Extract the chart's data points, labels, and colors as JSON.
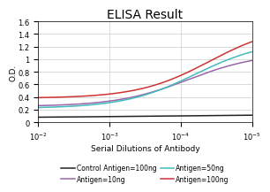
{
  "title": "ELISA Result",
  "ylabel": "O.D.",
  "xlabel": "Serial Dilutions of Antibody",
  "ylim": [
    0,
    1.6
  ],
  "yticks": [
    0,
    0.2,
    0.4,
    0.6,
    0.8,
    1.0,
    1.2,
    1.4,
    1.6
  ],
  "ytick_labels": [
    "0",
    "0.2",
    "0.4",
    "0.6",
    "0.8",
    "1",
    "1.2",
    "1.4",
    "1.6"
  ],
  "xtick_positions": [
    -2,
    -3,
    -4,
    -5
  ],
  "xtick_labels": [
    "10^-2",
    "10^-3",
    "10^-4",
    "10^-5"
  ],
  "curve_params": [
    {
      "label": "Control Antigen=100ng",
      "color": "#222222",
      "y_high": 0.12,
      "y_low": 0.07,
      "mid": -3.5,
      "steep": 1.0
    },
    {
      "label": "Antigen=10ng",
      "color": "#9966AA",
      "y_high": 1.1,
      "y_low": 0.25,
      "mid": -4.1,
      "steep": 2.0
    },
    {
      "label": "Antigen=50ng",
      "color": "#44BBBB",
      "y_high": 1.3,
      "y_low": 0.22,
      "mid": -4.2,
      "steep": 2.0
    },
    {
      "label": "Antigen=100ng",
      "color": "#CC3333",
      "y_high": 1.55,
      "y_low": 0.38,
      "mid": -4.4,
      "steep": 2.0
    }
  ],
  "title_fontsize": 10,
  "label_fontsize": 6.5,
  "tick_fontsize": 6,
  "legend_fontsize": 5.5,
  "linewidth": 1.1
}
